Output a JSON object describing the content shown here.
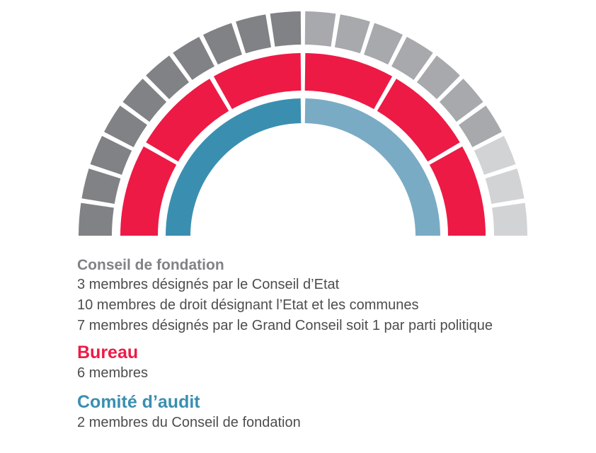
{
  "colors": {
    "conseil_dark": "#808285",
    "conseil_mid": "#a7a9ac",
    "conseil_light": "#d1d3d4",
    "bureau": "#ed1a45",
    "comite_dark": "#3a8fb0",
    "comite_light": "#7aabc5",
    "body_text": "#4d4d4d"
  },
  "diagram": {
    "outer_ring": {
      "seats": 20,
      "groups": [
        {
          "count": 10,
          "color_key": "conseil_dark"
        },
        {
          "count": 7,
          "color_key": "conseil_mid"
        },
        {
          "count": 3,
          "color_key": "conseil_light"
        }
      ]
    },
    "middle_ring": {
      "seats": 6,
      "color_key": "bureau"
    },
    "inner_ring": {
      "seats": 2,
      "color_keys": [
        "comite_dark",
        "comite_light"
      ]
    }
  },
  "legend": {
    "conseil": {
      "title": "Conseil de fondation",
      "lines": [
        "3 membres désignés par le Conseil d’Etat",
        "10 membres de droit désignant l’Etat et les communes",
        "7 membres désignés par le Grand Conseil soit 1 par parti politique"
      ]
    },
    "bureau": {
      "title": "Bureau",
      "lines": [
        "6 membres"
      ]
    },
    "comite": {
      "title": "Comité d’audit",
      "lines": [
        "2 membres du Conseil de fondation"
      ]
    }
  }
}
